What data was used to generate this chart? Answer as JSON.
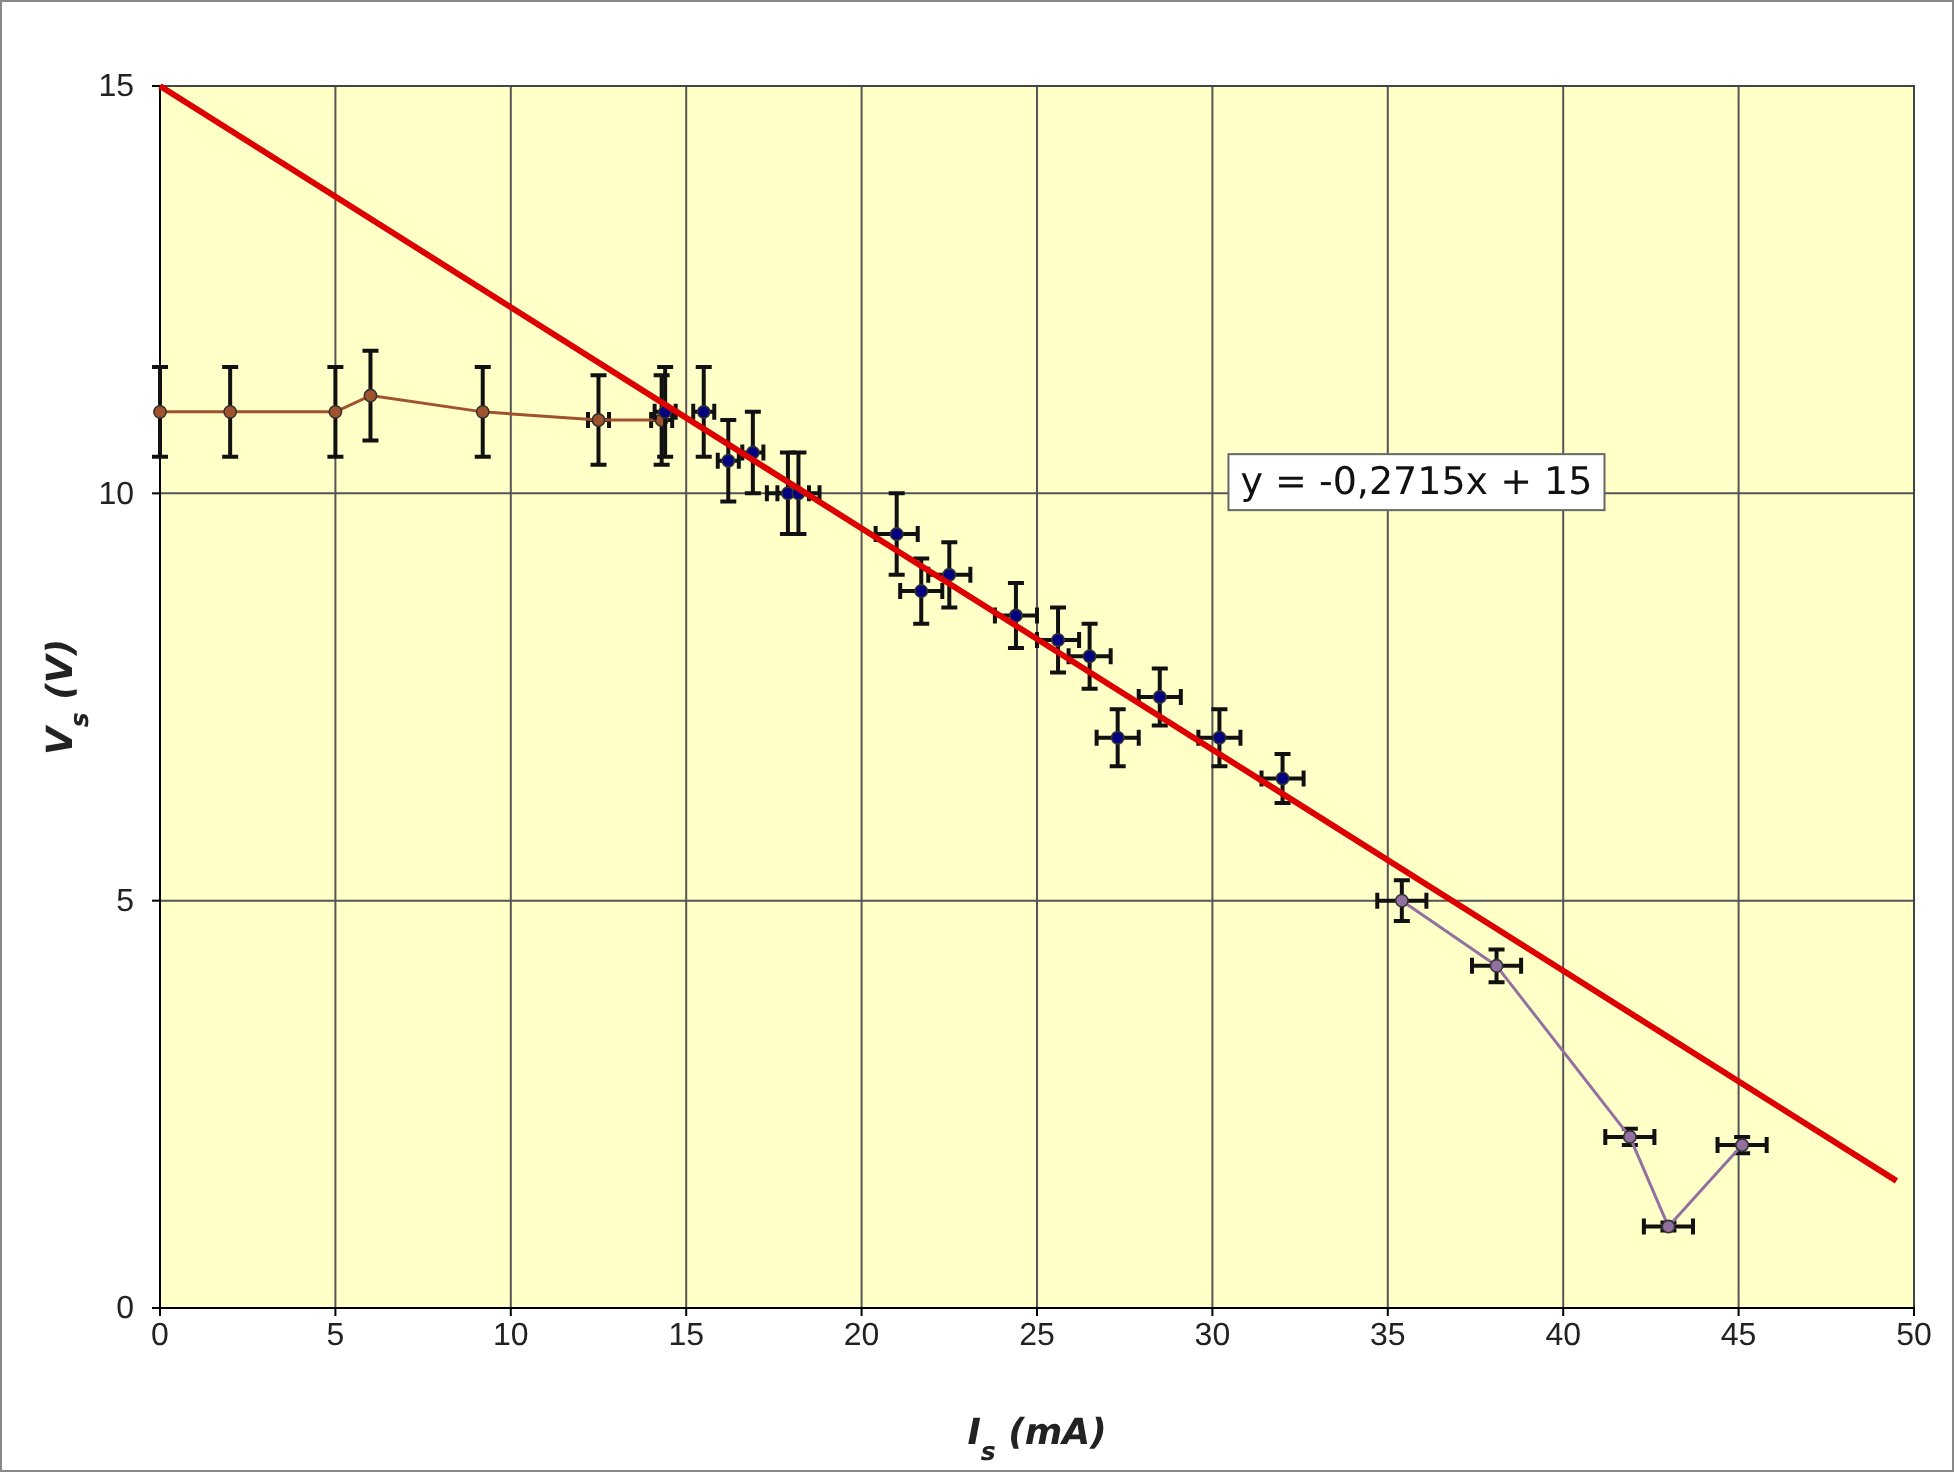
{
  "chart_data": {
    "type": "line",
    "xlabel": "I$_{s}$  (mA)",
    "ylabel": "V$_{s}$  (V)",
    "xlim": [
      0,
      50
    ],
    "ylim": [
      0,
      15
    ],
    "xticks": [
      0,
      5,
      10,
      15,
      20,
      25,
      30,
      35,
      40,
      45,
      50
    ],
    "yticks": [
      0,
      5,
      10,
      15
    ],
    "grid": true,
    "marker": "circle",
    "annotations": [
      "y = -0,2715x + 15"
    ],
    "series": [
      {
        "color": "#a0522d",
        "x": [
          0,
          2,
          5,
          6,
          9.2,
          12.5,
          14.3
        ],
        "values": [
          11.0,
          11.0,
          11.0,
          11.2,
          11.0,
          10.9,
          10.9
        ],
        "errors": [
          0.55,
          0.55,
          0.55,
          0.55,
          0.55,
          0.55,
          0.55
        ],
        "xerrors": [
          null,
          null,
          null,
          null,
          null,
          0.3,
          0.3
        ]
      },
      {
        "type": "scatter",
        "color": "#000080",
        "x": [
          14.4,
          15.5,
          16.2,
          16.9,
          17.9,
          18.2,
          21.0,
          21.7,
          22.5,
          24.4,
          25.6,
          26.5,
          27.3,
          28.5,
          30.2,
          32.0
        ],
        "values": [
          11.0,
          11.0,
          10.4,
          10.5,
          10.0,
          10.0,
          9.5,
          8.8,
          9.0,
          8.5,
          8.2,
          8.0,
          7.0,
          7.5,
          7.0,
          6.5
        ],
        "errors": [
          0.55,
          0.55,
          0.5,
          0.5,
          0.5,
          0.5,
          0.5,
          0.4,
          0.4,
          0.4,
          0.4,
          0.4,
          0.35,
          0.35,
          0.35,
          0.3
        ],
        "xerrors": [
          0.3,
          0.3,
          0.3,
          0.3,
          0.6,
          0.6,
          0.6,
          0.6,
          0.6,
          0.6,
          0.6,
          0.6,
          0.6,
          0.6,
          0.6,
          0.6
        ]
      },
      {
        "type": "line",
        "color": "#9370a0",
        "x": [
          35.4,
          38.1,
          41.9,
          43.0,
          45.1
        ],
        "values": [
          5.0,
          4.2,
          2.1,
          1.0,
          2.0
        ],
        "errors": [
          0.25,
          0.2,
          0.1,
          0.05,
          0.1
        ],
        "xerrors": [
          0.7,
          0.7,
          0.7,
          0.7,
          0.7
        ]
      },
      {
        "type": "line",
        "color": "#dd0000",
        "marker": "none",
        "x": [
          0,
          49.5
        ],
        "values": [
          15,
          1.56
        ]
      }
    ]
  }
}
